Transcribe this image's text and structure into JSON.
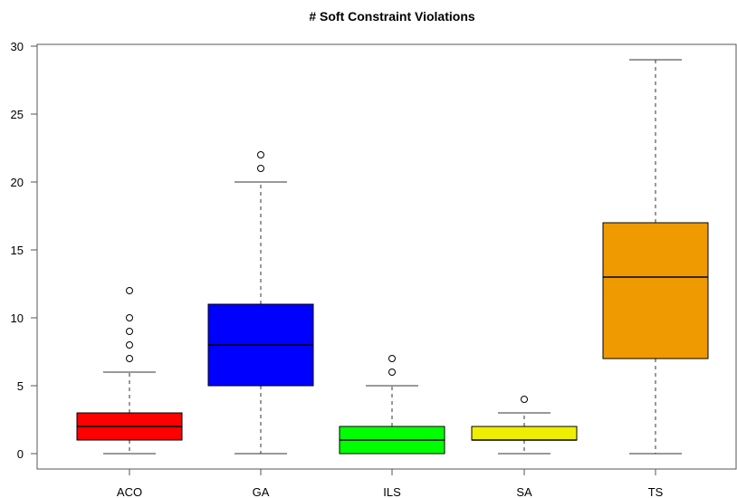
{
  "chart_data": {
    "type": "boxplot",
    "title": "# Soft Constraint Violations",
    "xlabel": "",
    "ylabel": "",
    "ylim": [
      -1.2,
      30
    ],
    "yticks": [
      0,
      5,
      10,
      15,
      20,
      25,
      30
    ],
    "categories": [
      "ACO",
      "GA",
      "ILS",
      "SA",
      "TS"
    ],
    "boxes": [
      {
        "name": "ACO",
        "color": "#ff0000",
        "min": 0,
        "q1": 1,
        "median": 2,
        "q3": 3,
        "max": 6,
        "outliers": [
          7,
          8,
          9,
          10,
          12
        ]
      },
      {
        "name": "GA",
        "color": "#0000ff",
        "min": 0,
        "q1": 5,
        "median": 8,
        "q3": 11,
        "max": 20,
        "outliers": [
          21,
          22
        ]
      },
      {
        "name": "ILS",
        "color": "#00ff00",
        "min": 0,
        "q1": 0,
        "median": 1,
        "q3": 2,
        "max": 5,
        "outliers": [
          6,
          7
        ]
      },
      {
        "name": "SA",
        "color": "#eeee00",
        "min": 0,
        "q1": 1,
        "median": 1,
        "q3": 2,
        "max": 3,
        "outliers": [
          4
        ]
      },
      {
        "name": "TS",
        "color": "#ee9a00",
        "min": 0,
        "q1": 7,
        "median": 13,
        "q3": 17,
        "max": 29,
        "outliers": []
      }
    ],
    "grid": false,
    "legend": "none"
  }
}
